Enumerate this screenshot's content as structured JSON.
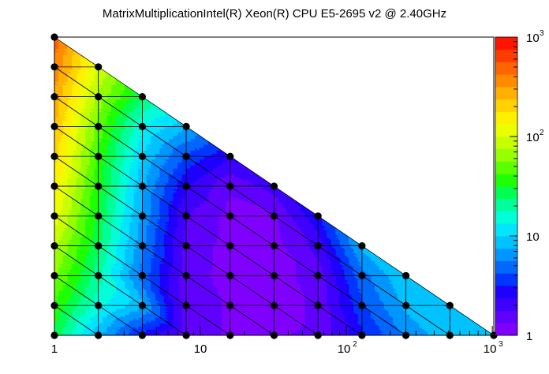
{
  "chart_data": {
    "type": "heatmap",
    "title": "MatrixMultiplicationIntel(R) Xeon(R) CPU E5-2695 v2 @ 2.40GHz",
    "xlabel": "",
    "ylabel": "",
    "x_scale": "log2",
    "x_axis_range": [
      1,
      1024
    ],
    "y_rows": 11,
    "x_ticks": [
      {
        "base": "1",
        "exp": ""
      },
      {
        "base": "10",
        "exp": ""
      },
      {
        "base": "10",
        "exp": "2"
      },
      {
        "base": "10",
        "exp": "3"
      }
    ],
    "colorbar": {
      "scale": "log",
      "range": [
        1,
        1000
      ],
      "ticks": [
        {
          "value": 1,
          "base": "1",
          "exp": ""
        },
        {
          "value": 10,
          "base": "10",
          "exp": ""
        },
        {
          "value": 100,
          "base": "10",
          "exp": "2"
        },
        {
          "value": 1000,
          "base": "10",
          "exp": "3"
        }
      ],
      "palette": [
        "#8000ff",
        "#6000ff",
        "#3e00ff",
        "#1e00ff",
        "#0036ff",
        "#0068ff",
        "#0096ff",
        "#00c2ff",
        "#00e6ff",
        "#00ffd8",
        "#00ff9a",
        "#00ff50",
        "#1eff00",
        "#5aff00",
        "#96ff00",
        "#c8ff00",
        "#ecff00",
        "#fff000",
        "#ffd200",
        "#ffb000",
        "#ff8a00",
        "#ff6400",
        "#ff3c00",
        "#ff1400"
      ]
    },
    "rows": [
      {
        "row": 0,
        "x": [
          1,
          2,
          4,
          8,
          16,
          32,
          64,
          128,
          256,
          512,
          1024
        ],
        "values": [
          30,
          8,
          3,
          1.5,
          1.3,
          1.3,
          1.4,
          3,
          6,
          9,
          10
        ]
      },
      {
        "row": 1,
        "x": [
          1,
          2,
          4,
          8,
          16,
          32,
          64,
          128,
          256,
          512
        ],
        "values": [
          40,
          15,
          8,
          1.5,
          1.3,
          1.2,
          1.4,
          4,
          8,
          10
        ]
      },
      {
        "row": 2,
        "x": [
          1,
          2,
          4,
          8,
          16,
          32,
          64,
          128,
          256
        ],
        "values": [
          60,
          20,
          5,
          1.5,
          1.2,
          1.2,
          1.5,
          5,
          10
        ]
      },
      {
        "row": 3,
        "x": [
          1,
          2,
          4,
          8,
          16,
          32,
          64,
          128
        ],
        "values": [
          80,
          25,
          6,
          1.6,
          1.2,
          1.2,
          2,
          8
        ]
      },
      {
        "row": 4,
        "x": [
          1,
          2,
          4,
          8,
          16,
          32,
          64
        ],
        "values": [
          120,
          30,
          7,
          1.8,
          1.2,
          1.3,
          3
        ]
      },
      {
        "row": 5,
        "x": [
          1,
          2,
          4,
          8,
          16,
          32
        ],
        "values": [
          150,
          35,
          8,
          2.5,
          1.4,
          2
        ]
      },
      {
        "row": 6,
        "x": [
          1,
          2,
          4,
          8,
          16
        ],
        "values": [
          200,
          40,
          10,
          4,
          2.5
        ]
      },
      {
        "row": 7,
        "x": [
          1,
          2,
          4,
          8
        ],
        "values": [
          250,
          50,
          14,
          8
        ]
      },
      {
        "row": 8,
        "x": [
          1,
          2,
          4
        ],
        "values": [
          300,
          70,
          25
        ]
      },
      {
        "row": 9,
        "x": [
          1,
          2
        ],
        "values": [
          400,
          100
        ]
      },
      {
        "row": 10,
        "x": [
          1
        ],
        "values": [
          500
        ]
      }
    ]
  }
}
